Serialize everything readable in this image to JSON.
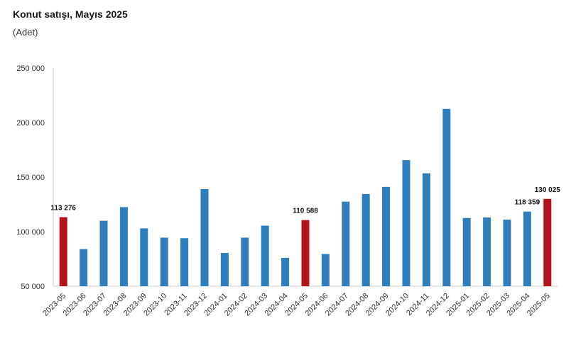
{
  "title": "Konut satışı, Mayıs 2025",
  "subtitle": "(Adet)",
  "chart_data": {
    "type": "bar",
    "title": "Konut satışı, Mayıs 2025",
    "subtitle": "(Adet)",
    "xlabel": "",
    "ylabel": "",
    "ylim": [
      50000,
      250000
    ],
    "yticks": [
      50000,
      100000,
      150000,
      200000,
      250000
    ],
    "ytick_labels": [
      "50 000",
      "100 000",
      "150 000",
      "200 000",
      "250 000"
    ],
    "grid": false,
    "categories": [
      "2023-05",
      "2023-06",
      "2023-07",
      "2023-08",
      "2023-09",
      "2023-10",
      "2023-11",
      "2023-12",
      "2024-01",
      "2024-02",
      "2024-03",
      "2024-04",
      "2024-05",
      "2024-06",
      "2024-07",
      "2024-08",
      "2024-09",
      "2024-10",
      "2024-11",
      "2024-12",
      "2025-01",
      "2025-02",
      "2025-03",
      "2025-04",
      "2025-05"
    ],
    "values": [
      113276,
      84000,
      110000,
      122500,
      103000,
      94500,
      94000,
      139000,
      80500,
      94500,
      105500,
      76000,
      110588,
      79500,
      127500,
      134500,
      141000,
      165500,
      153500,
      212500,
      112500,
      113000,
      111000,
      118359,
      130025
    ],
    "highlight": [
      true,
      false,
      false,
      false,
      false,
      false,
      false,
      false,
      false,
      false,
      false,
      false,
      true,
      false,
      false,
      false,
      false,
      false,
      false,
      false,
      false,
      false,
      false,
      false,
      true
    ],
    "data_labels": [
      {
        "index": 0,
        "text": "113 276"
      },
      {
        "index": 12,
        "text": "110 588"
      },
      {
        "index": 23,
        "text": "118 359"
      },
      {
        "index": 24,
        "text": "130 025"
      }
    ],
    "colors": {
      "default": "#2e7ebd",
      "highlight": "#b3131b",
      "axis": "#c8c8c8"
    }
  }
}
